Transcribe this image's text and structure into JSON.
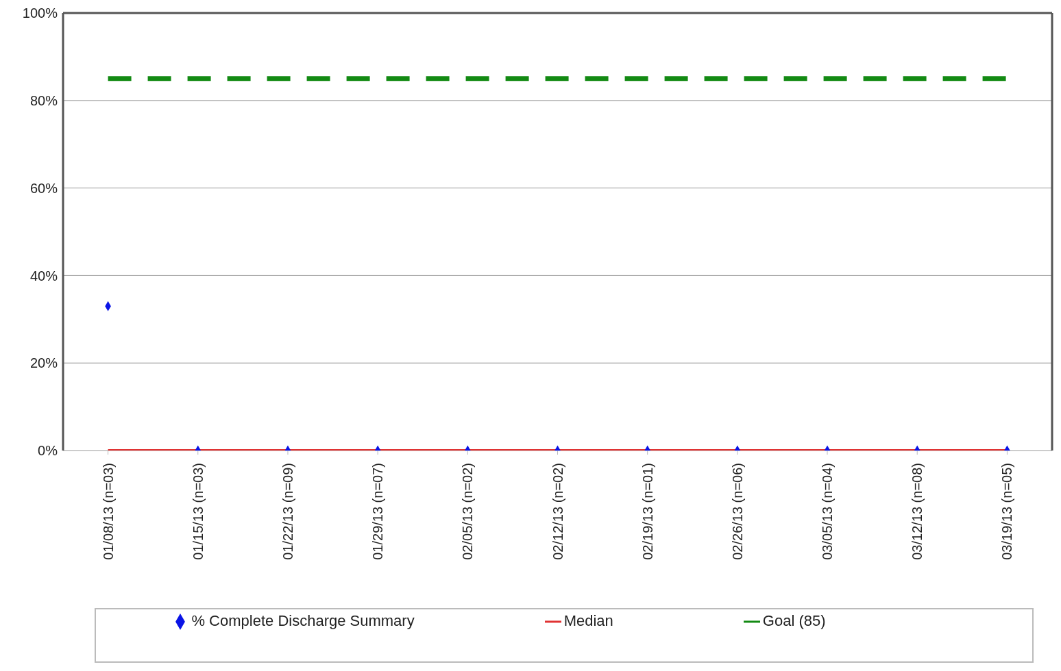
{
  "chart_data": {
    "type": "line",
    "categories": [
      "01/08/13 (n=03)",
      "01/15/13 (n=03)",
      "01/22/13 (n=09)",
      "01/29/13 (n=07)",
      "02/05/13 (n=02)",
      "02/12/13 (n=02)",
      "02/19/13 (n=01)",
      "02/26/13 (n=06)",
      "03/05/13 (n=04)",
      "03/12/13 (n=08)",
      "03/19/13 (n=05)"
    ],
    "series": [
      {
        "name": "% Complete Discharge Summary",
        "type": "scatter",
        "marker": "diamond",
        "color": "#0a14e6",
        "values": [
          33,
          0,
          0,
          0,
          0,
          0,
          0,
          0,
          0,
          0,
          0
        ]
      },
      {
        "name": "Median",
        "type": "line",
        "marker": "none",
        "line_style": "solid",
        "color": "#e03333",
        "values": [
          0,
          0,
          0,
          0,
          0,
          0,
          0,
          0,
          0,
          0,
          0
        ]
      },
      {
        "name": "Goal (85)",
        "type": "line",
        "marker": "none",
        "line_style": "dashed",
        "color": "#138a13",
        "values": [
          85,
          85,
          85,
          85,
          85,
          85,
          85,
          85,
          85,
          85,
          85
        ]
      }
    ],
    "ylim": [
      0,
      100
    ],
    "yticks": [
      {
        "value": 0,
        "label": "0%"
      },
      {
        "value": 20,
        "label": "20%"
      },
      {
        "value": 40,
        "label": "40%"
      },
      {
        "value": 60,
        "label": "60%"
      },
      {
        "value": 80,
        "label": "80%"
      },
      {
        "value": 100,
        "label": "100%"
      }
    ],
    "grid": "y",
    "legend": "bottom"
  }
}
